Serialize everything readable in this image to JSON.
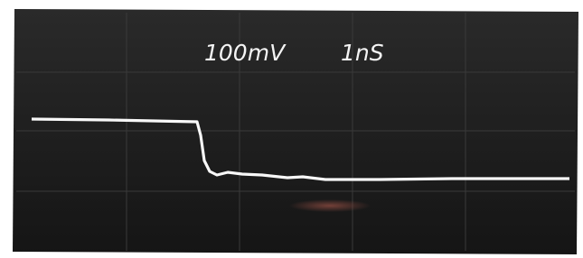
{
  "labels": {
    "volts_per_div": "100mV",
    "time_per_div": "1nS"
  }
}
